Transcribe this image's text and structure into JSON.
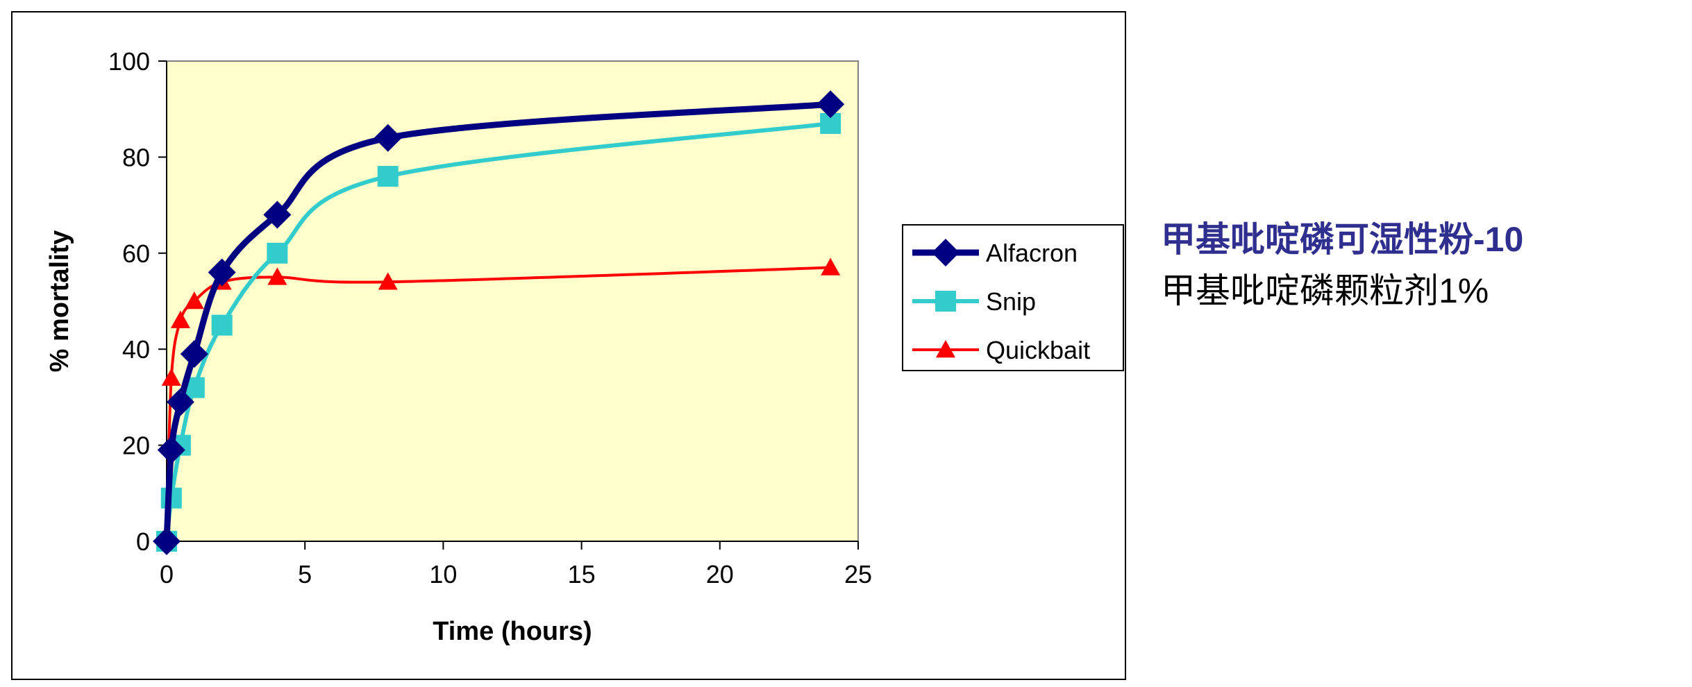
{
  "chart_data": {
    "type": "line",
    "title": "",
    "xlabel": "Time (hours)",
    "ylabel": "% mortality",
    "xlim": [
      0,
      25
    ],
    "ylim": [
      0,
      100
    ],
    "xticks": [
      0,
      5,
      10,
      15,
      20,
      25
    ],
    "yticks": [
      0,
      20,
      40,
      60,
      80,
      100
    ],
    "plot_background": "#FFFFCC",
    "grid": false,
    "smooth": true,
    "legend_position": "right",
    "series": [
      {
        "name": "Alfacron",
        "color": "#000080",
        "marker": "diamond",
        "x": [
          0,
          0.17,
          0.5,
          1,
          2,
          4,
          8,
          24
        ],
        "y": [
          0,
          19,
          29,
          39,
          56,
          68,
          84,
          91
        ]
      },
      {
        "name": "Snip",
        "color": "#33CCCC",
        "marker": "square",
        "x": [
          0,
          0.17,
          0.5,
          1,
          2,
          4,
          8,
          24
        ],
        "y": [
          0,
          9,
          20,
          32,
          45,
          60,
          76,
          87
        ]
      },
      {
        "name": "Quickbait",
        "color": "#FF0000",
        "marker": "triangle",
        "x": [
          0,
          0.17,
          0.5,
          1,
          2,
          4,
          8,
          24
        ],
        "y": [
          0,
          34,
          46,
          50,
          54,
          55,
          54,
          57
        ]
      }
    ]
  },
  "notes": {
    "line1": "甲基吡啶磷可湿性粉-10",
    "line2": "甲基吡啶磷颗粒剂1%"
  }
}
